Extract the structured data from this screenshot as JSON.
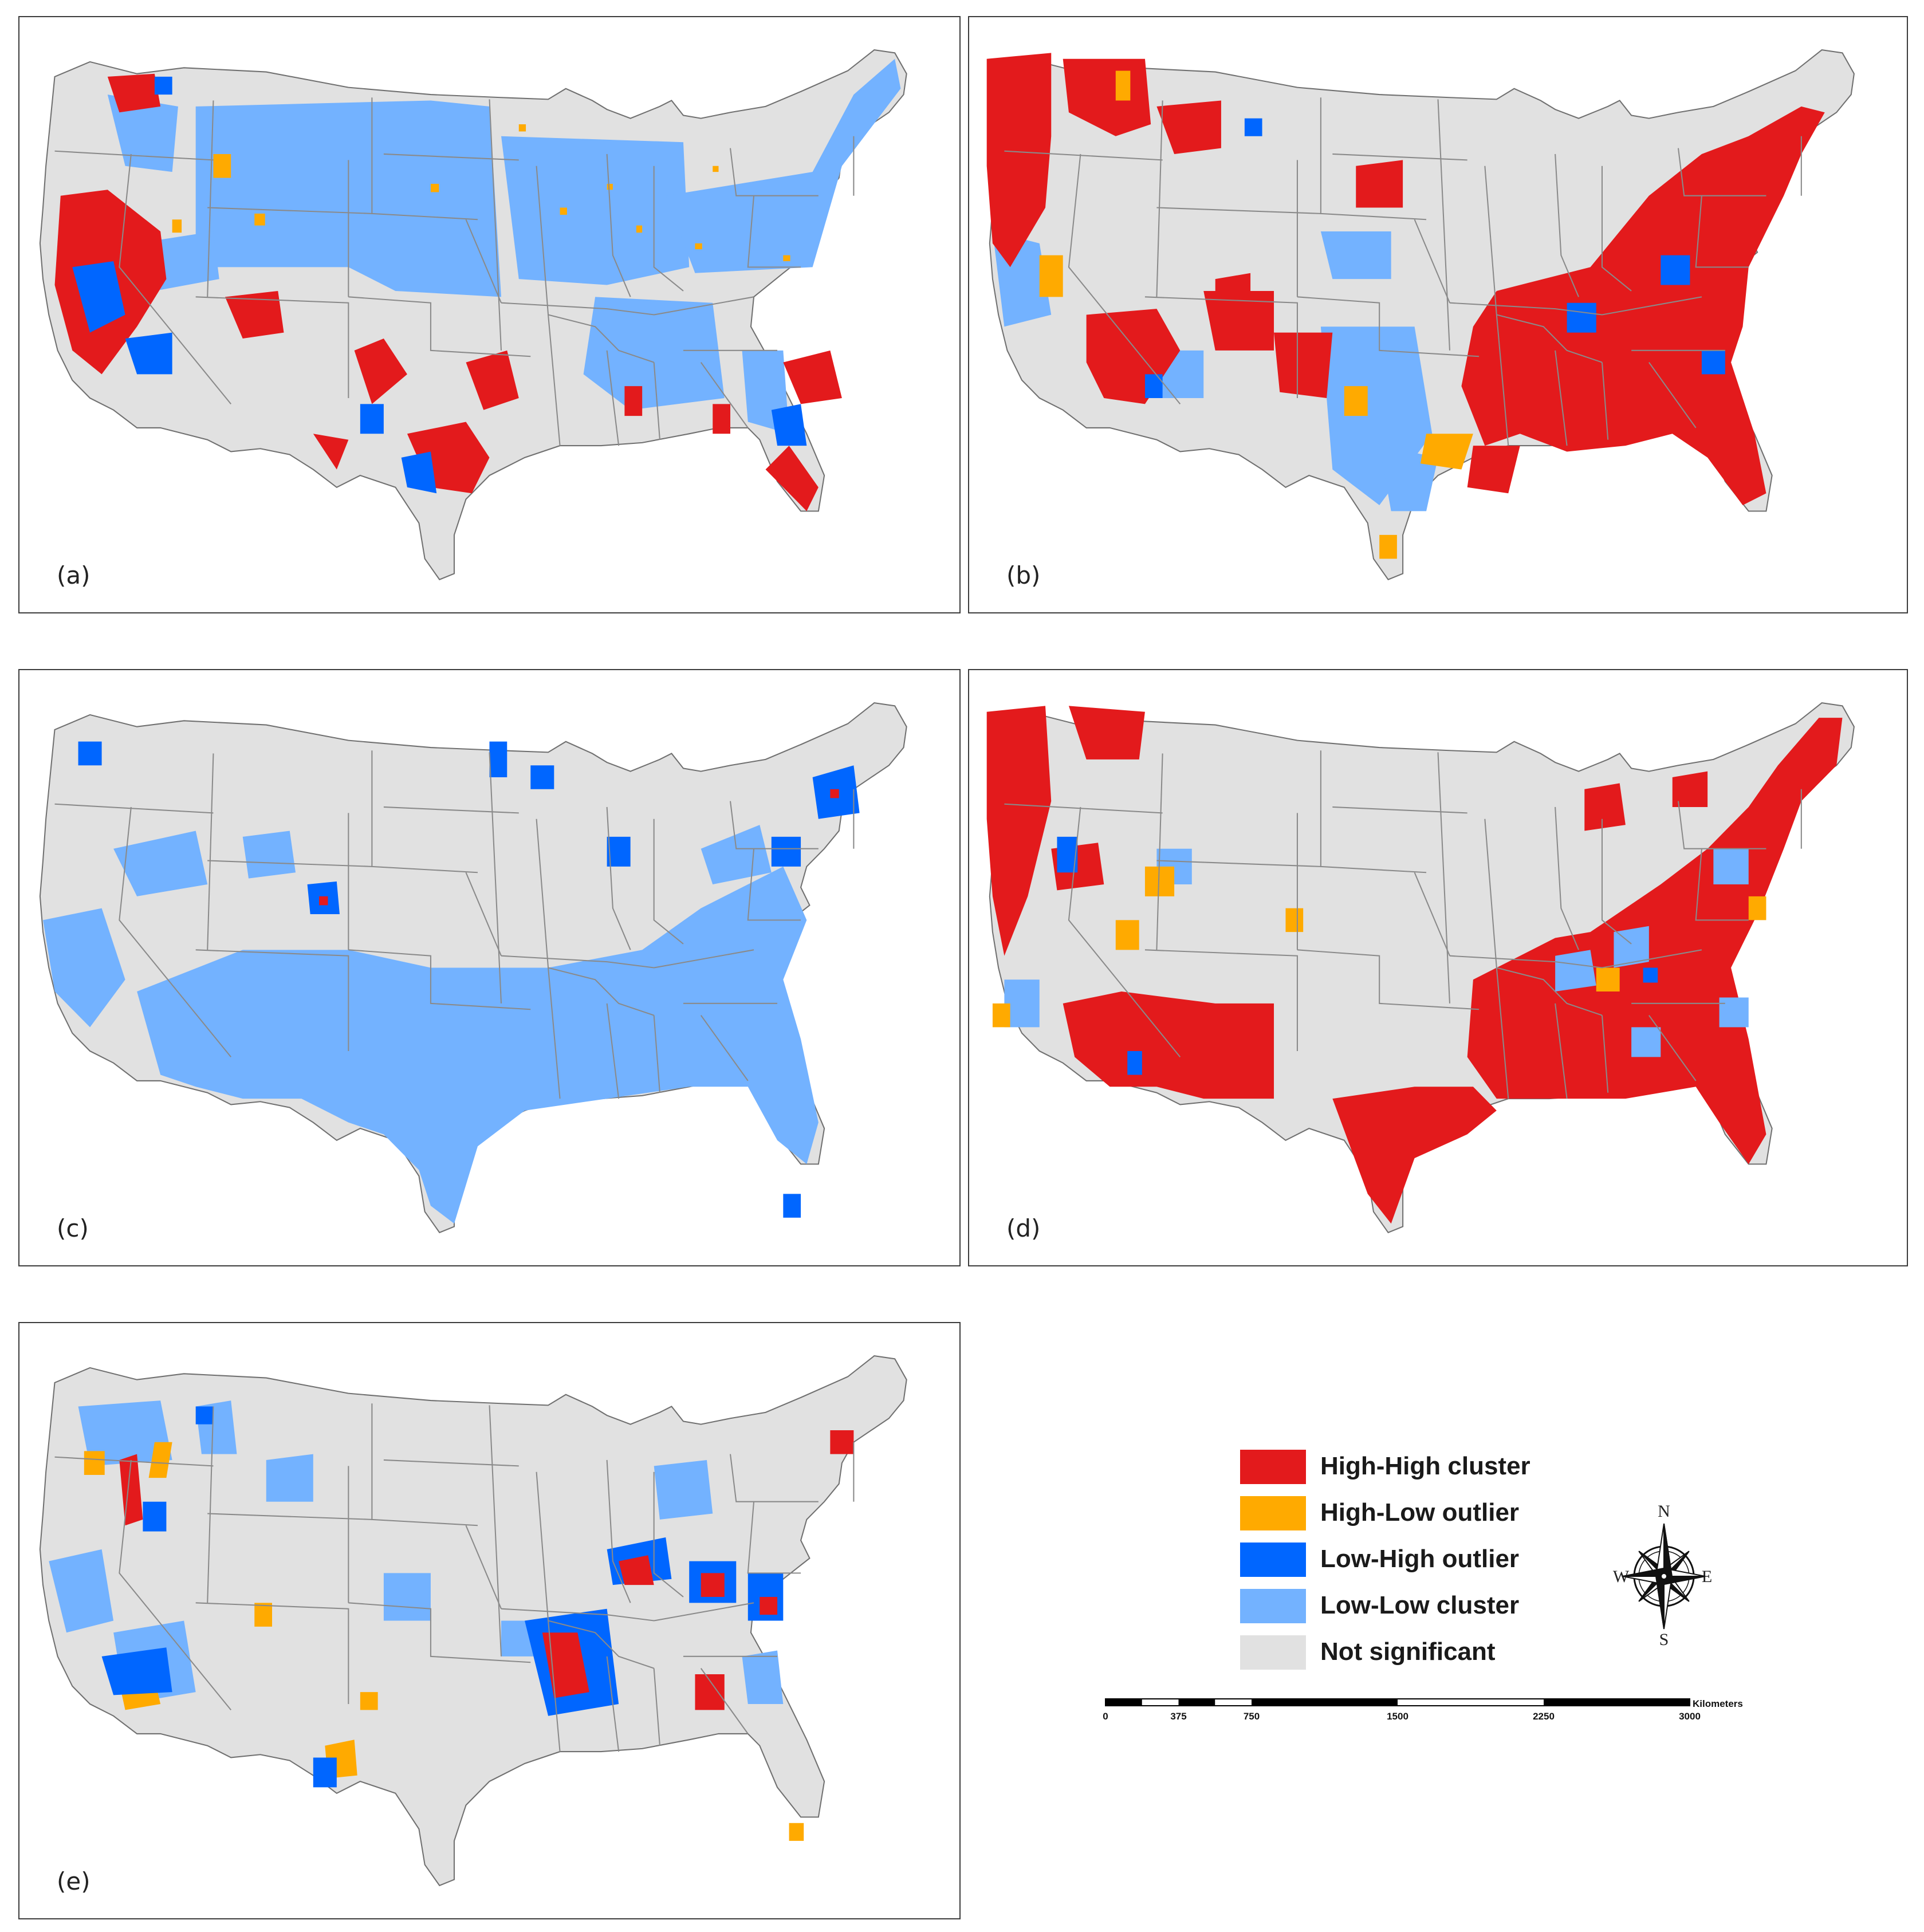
{
  "panels": [
    {
      "id": "a",
      "label": "(a)"
    },
    {
      "id": "b",
      "label": "(b)"
    },
    {
      "id": "c",
      "label": "(c)"
    },
    {
      "id": "d",
      "label": "(d)"
    },
    {
      "id": "e",
      "label": "(e)"
    }
  ],
  "legend": {
    "items": [
      {
        "label": "High-High cluster",
        "color": "#e31a1c"
      },
      {
        "label": "High-Low outlier",
        "color": "#ffaa00"
      },
      {
        "label": "Low-High outlier",
        "color": "#0066ff"
      },
      {
        "label": "Low-Low cluster",
        "color": "#73b2ff"
      },
      {
        "label": "Not significant",
        "color": "#e1e1e1"
      }
    ]
  },
  "compass": {
    "n": "N",
    "s": "S",
    "e": "E",
    "w": "W"
  },
  "scalebar": {
    "ticks": [
      "0",
      "375",
      "750",
      "1500",
      "2250",
      "3000"
    ],
    "unit": "Kilometers"
  },
  "colors": {
    "high_high": "#e31a1c",
    "high_low": "#ffaa00",
    "low_high": "#0066ff",
    "low_low": "#73b2ff",
    "not_significant": "#e1e1e1",
    "state_border": "#8a8a8a"
  }
}
